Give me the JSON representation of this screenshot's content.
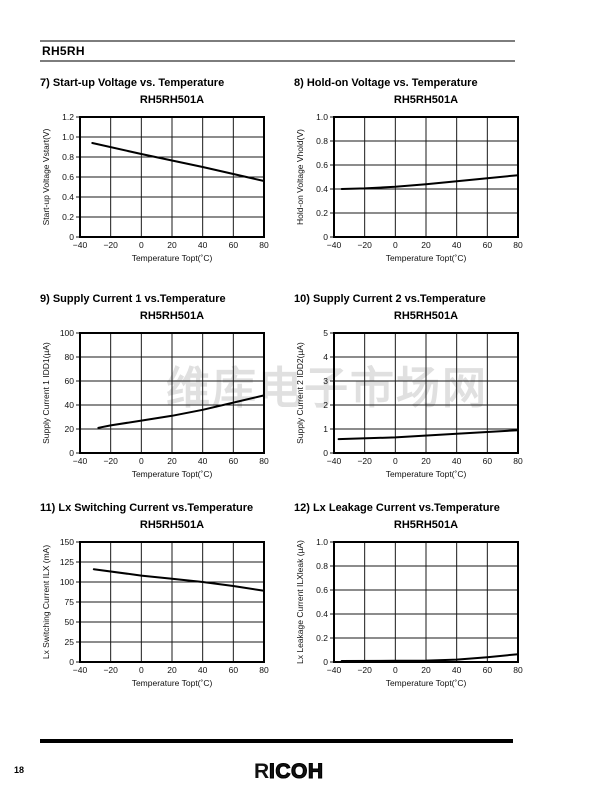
{
  "page": {
    "header_title": "RH5RH",
    "page_number": "18",
    "watermark": "维库电子市场网",
    "logo": {
      "first_letter": "R",
      "rest_letters": "ICOH"
    }
  },
  "chart_data": [
    {
      "type": "line",
      "title": "7) Start-up Voltage vs. Temperature",
      "subtitle": "RH5RH501A",
      "xlabel": "Temperature Topt(˚C)",
      "ylabel": "Start-up Voltage Vstart(V)",
      "xlim": [
        -40,
        80
      ],
      "ylim": [
        0,
        1.2
      ],
      "xticks": [
        -40,
        -20,
        0,
        20,
        40,
        60,
        80
      ],
      "xtick_labels": [
        "−40",
        "−20",
        "0",
        "20",
        "40",
        "60",
        "80"
      ],
      "yticks": [
        0,
        0.2,
        0.4,
        0.6,
        0.8,
        1.0,
        1.2
      ],
      "ytick_labels": [
        "0",
        "0.2",
        "0.4",
        "0.6",
        "0.8",
        "1.0",
        "1.2"
      ],
      "grid": true,
      "legend": false,
      "points": [
        [
          -32,
          0.94
        ],
        [
          0,
          0.83
        ],
        [
          40,
          0.7
        ],
        [
          80,
          0.56
        ]
      ]
    },
    {
      "type": "line",
      "title": "8) Hold-on Voltage vs. Temperature",
      "subtitle": "RH5RH501A",
      "xlabel": "Temperature Topt(˚C)",
      "ylabel": "Hold-on Voltage Vhold(V)",
      "xlim": [
        -40,
        80
      ],
      "ylim": [
        0,
        1.0
      ],
      "xticks": [
        -40,
        -20,
        0,
        20,
        40,
        60,
        80
      ],
      "xtick_labels": [
        "−40",
        "−20",
        "0",
        "20",
        "40",
        "60",
        "80"
      ],
      "yticks": [
        0,
        0.2,
        0.4,
        0.6,
        0.8,
        1.0
      ],
      "ytick_labels": [
        "0",
        "0.2",
        "0.4",
        "0.6",
        "0.8",
        "1.0"
      ],
      "grid": true,
      "legend": false,
      "points": [
        [
          -35,
          0.4
        ],
        [
          -20,
          0.405
        ],
        [
          0,
          0.418
        ],
        [
          20,
          0.44
        ],
        [
          40,
          0.465
        ],
        [
          60,
          0.49
        ],
        [
          80,
          0.515
        ]
      ]
    },
    {
      "type": "line",
      "title": "9) Supply Current 1 vs.Temperature",
      "subtitle": "RH5RH501A",
      "xlabel": "Temperature Topt(˚C)",
      "ylabel": "Supply Current 1 IDD1(µA)",
      "xlim": [
        -40,
        80
      ],
      "ylim": [
        0,
        100
      ],
      "xticks": [
        -40,
        -20,
        0,
        20,
        40,
        60,
        80
      ],
      "xtick_labels": [
        "−40",
        "−20",
        "0",
        "20",
        "40",
        "60",
        "80"
      ],
      "yticks": [
        0,
        20,
        40,
        60,
        80,
        100
      ],
      "ytick_labels": [
        "0",
        "20",
        "40",
        "60",
        "80",
        "100"
      ],
      "grid": true,
      "legend": false,
      "points": [
        [
          -28,
          21
        ],
        [
          -20,
          23
        ],
        [
          0,
          27
        ],
        [
          20,
          31
        ],
        [
          40,
          36
        ],
        [
          60,
          42
        ],
        [
          80,
          48
        ]
      ]
    },
    {
      "type": "line",
      "title": "10) Supply Current 2 vs.Temperature",
      "subtitle": "RH5RH501A",
      "xlabel": "Temperature Topt(˚C)",
      "ylabel": "Supply Current 2 IDD2(µA)",
      "xlim": [
        -40,
        80
      ],
      "ylim": [
        0,
        5
      ],
      "xticks": [
        -40,
        -20,
        0,
        20,
        40,
        60,
        80
      ],
      "xtick_labels": [
        "−40",
        "−20",
        "0",
        "20",
        "40",
        "60",
        "80"
      ],
      "yticks": [
        0,
        1,
        2,
        3,
        4,
        5
      ],
      "ytick_labels": [
        "0",
        "1",
        "2",
        "3",
        "4",
        "5"
      ],
      "grid": true,
      "legend": false,
      "points": [
        [
          -37,
          0.58
        ],
        [
          0,
          0.65
        ],
        [
          40,
          0.8
        ],
        [
          80,
          0.95
        ]
      ]
    },
    {
      "type": "line",
      "title": "11) Lx Switching Current  vs.Temperature",
      "subtitle": "RH5RH501A",
      "xlabel": "Temperature Topt(˚C)",
      "ylabel": "Lx Switching Current ILX (mA)",
      "xlim": [
        -40,
        80
      ],
      "ylim": [
        0,
        150
      ],
      "xticks": [
        -40,
        -20,
        0,
        20,
        40,
        60,
        80
      ],
      "xtick_labels": [
        "−40",
        "−20",
        "0",
        "20",
        "40",
        "60",
        "80"
      ],
      "yticks": [
        0,
        25,
        50,
        75,
        100,
        125,
        150
      ],
      "ytick_labels": [
        "0",
        "25",
        "50",
        "75",
        "100",
        "125",
        "150"
      ],
      "grid": true,
      "legend": false,
      "points": [
        [
          -31,
          116
        ],
        [
          0,
          108
        ],
        [
          20,
          104
        ],
        [
          40,
          100
        ],
        [
          60,
          95
        ],
        [
          80,
          89
        ]
      ]
    },
    {
      "type": "line",
      "title": "12) Lx Leakage Current  vs.Temperature",
      "subtitle": "RH5RH501A",
      "xlabel": "Temperature Topt(˚C)",
      "ylabel": "Lx Leakage Current ILXleak (µA)",
      "xlim": [
        -40,
        80
      ],
      "ylim": [
        0,
        1.0
      ],
      "xticks": [
        -40,
        -20,
        0,
        20,
        40,
        60,
        80
      ],
      "xtick_labels": [
        "−40",
        "−20",
        "0",
        "20",
        "40",
        "60",
        "80"
      ],
      "yticks": [
        0,
        0.2,
        0.4,
        0.6,
        0.8,
        1.0
      ],
      "ytick_labels": [
        "0",
        "0.2",
        "0.4",
        "0.6",
        "0.8",
        "1.0"
      ],
      "grid": true,
      "legend": false,
      "points": [
        [
          -35,
          0.008
        ],
        [
          0,
          0.01
        ],
        [
          20,
          0.012
        ],
        [
          40,
          0.02
        ],
        [
          60,
          0.04
        ],
        [
          80,
          0.065
        ]
      ]
    }
  ]
}
